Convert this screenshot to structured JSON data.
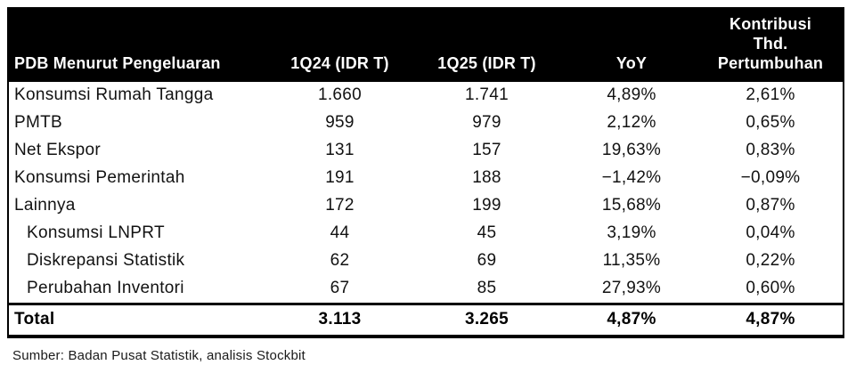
{
  "colors": {
    "header_bg": "#000000",
    "header_text": "#ffffff",
    "body_text": "#121212",
    "border": "#000000",
    "page_bg": "#ffffff"
  },
  "chart_data": {
    "type": "table",
    "columns": [
      {
        "label": "PDB Menurut Pengeluaran"
      },
      {
        "label": "1Q24 (IDR T)"
      },
      {
        "label": "1Q25 (IDR T)"
      },
      {
        "label": "YoY"
      },
      {
        "label": "Kontribusi\nThd.\nPertumbuhan"
      }
    ],
    "rows": [
      {
        "label": "Konsumsi Rumah Tangga",
        "q1_24": "1.660",
        "q1_25": "1.741",
        "yoy": "4,89%",
        "contrib": "2,61%",
        "indent": false
      },
      {
        "label": "PMTB",
        "q1_24": "959",
        "q1_25": "979",
        "yoy": "2,12%",
        "contrib": "0,65%",
        "indent": false
      },
      {
        "label": "Net Ekspor",
        "q1_24": "131",
        "q1_25": "157",
        "yoy": "19,63%",
        "contrib": "0,83%",
        "indent": false
      },
      {
        "label": "Konsumsi Pemerintah",
        "q1_24": "191",
        "q1_25": "188",
        "yoy": "−1,42%",
        "contrib": "−0,09%",
        "indent": false
      },
      {
        "label": "Lainnya",
        "q1_24": "172",
        "q1_25": "199",
        "yoy": "15,68%",
        "contrib": "0,87%",
        "indent": false
      },
      {
        "label": "Konsumsi LNPRT",
        "q1_24": "44",
        "q1_25": "45",
        "yoy": "3,19%",
        "contrib": "0,04%",
        "indent": true
      },
      {
        "label": "Diskrepansi Statistik",
        "q1_24": "62",
        "q1_25": "69",
        "yoy": "11,35%",
        "contrib": "0,22%",
        "indent": true
      },
      {
        "label": "Perubahan Inventori",
        "q1_24": "67",
        "q1_25": "85",
        "yoy": "27,93%",
        "contrib": "0,60%",
        "indent": true
      }
    ],
    "total": {
      "label": "Total",
      "q1_24": "3.113",
      "q1_25": "3.265",
      "yoy": "4,87%",
      "contrib": "4,87%"
    },
    "source": "Sumber: Badan Pusat Statistik, analisis Stockbit"
  }
}
